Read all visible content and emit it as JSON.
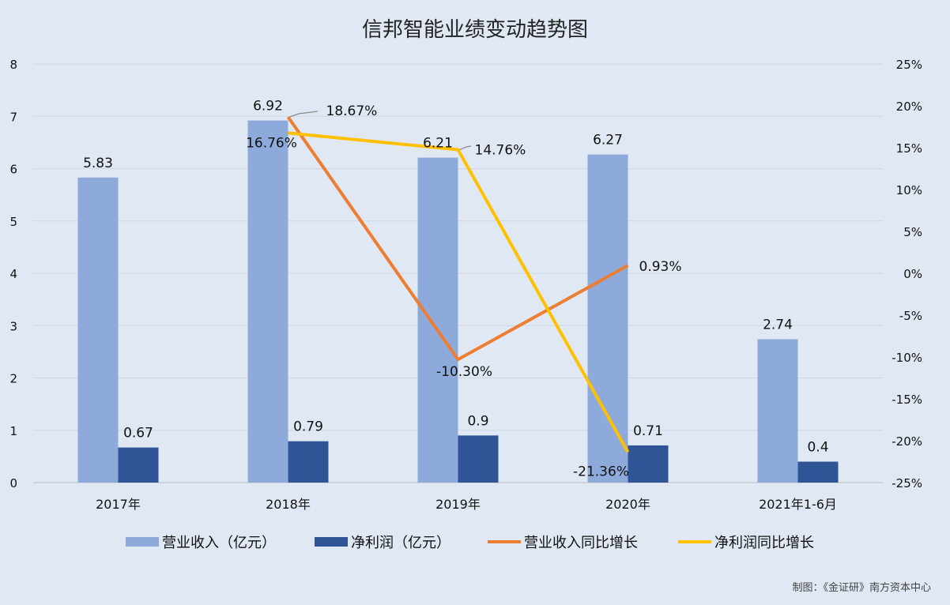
{
  "chart_data": {
    "type": "bar",
    "title": "信邦智能业绩变动趋势图",
    "credit": "制图：《金证研》南方资本中心",
    "categories": [
      "2017年",
      "2018年",
      "2019年",
      "2020年",
      "2021年1-6月"
    ],
    "y_left": {
      "min": 0,
      "max": 8,
      "ticks": [
        "0",
        "1",
        "2",
        "3",
        "4",
        "5",
        "6",
        "7",
        "8"
      ]
    },
    "y_right": {
      "min": -25,
      "max": 25,
      "ticks": [
        "-25%",
        "-20%",
        "-15%",
        "-10%",
        "-5%",
        "0%",
        "5%",
        "10%",
        "15%",
        "20%",
        "25%"
      ]
    },
    "grid": true,
    "legend_position": "bottom",
    "bar_series": [
      {
        "name": "营业收入（亿元）",
        "color": "#8eaadb",
        "values": [
          5.83,
          6.92,
          6.21,
          6.27,
          2.74
        ],
        "labels": [
          "5.83",
          "6.92",
          "6.21",
          "6.27",
          "2.74"
        ]
      },
      {
        "name": "净利润（亿元）",
        "color": "#2f5597",
        "values": [
          0.67,
          0.79,
          0.9,
          0.71,
          0.4
        ],
        "labels": [
          "0.67",
          "0.79",
          "0.9",
          "0.71",
          "0.4"
        ]
      }
    ],
    "line_series": [
      {
        "name": "营业收入同比增长",
        "color": "#ed7d31",
        "values": [
          null,
          18.67,
          -10.3,
          0.93,
          null
        ],
        "labels": [
          "",
          "18.67%",
          "-10.30%",
          "0.93%",
          ""
        ]
      },
      {
        "name": "净利润同比增长",
        "color": "#ffc000",
        "values": [
          null,
          16.76,
          14.76,
          -21.36,
          null
        ],
        "labels": [
          "",
          "16.76%",
          "14.76%",
          "-21.36%",
          ""
        ]
      }
    ]
  }
}
